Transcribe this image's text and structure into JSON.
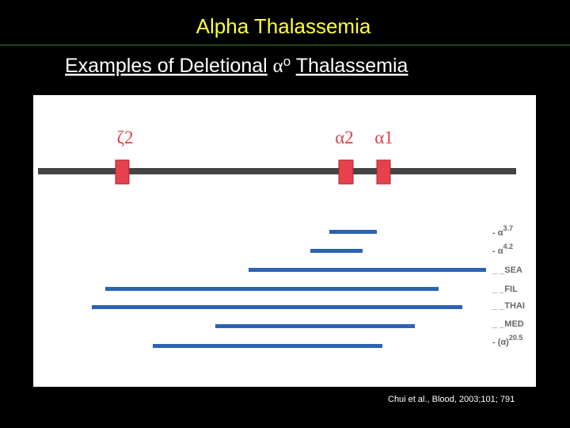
{
  "header": {
    "title": "Alpha Thalassemia",
    "subtitle": {
      "before": "Examples of Deletional",
      "symbol": "α",
      "sup": "o",
      "after": "Thalassemia"
    }
  },
  "genes": [
    {
      "label": "ζ2"
    },
    {
      "label": "α2"
    },
    {
      "label": "α1"
    }
  ],
  "deletions": [
    {
      "prefix": "- α",
      "sup": "3.7"
    },
    {
      "prefix": "- α",
      "sup": "4.2"
    },
    {
      "prefix": "_ _SEA"
    },
    {
      "prefix": "_ _FIL"
    },
    {
      "prefix": "_ _THAI"
    },
    {
      "prefix": "_ _MED"
    },
    {
      "prefix": "- (α)",
      "sup": "20.5"
    }
  ],
  "citation": "Chui et al., Blood, 2003;101; 791"
}
